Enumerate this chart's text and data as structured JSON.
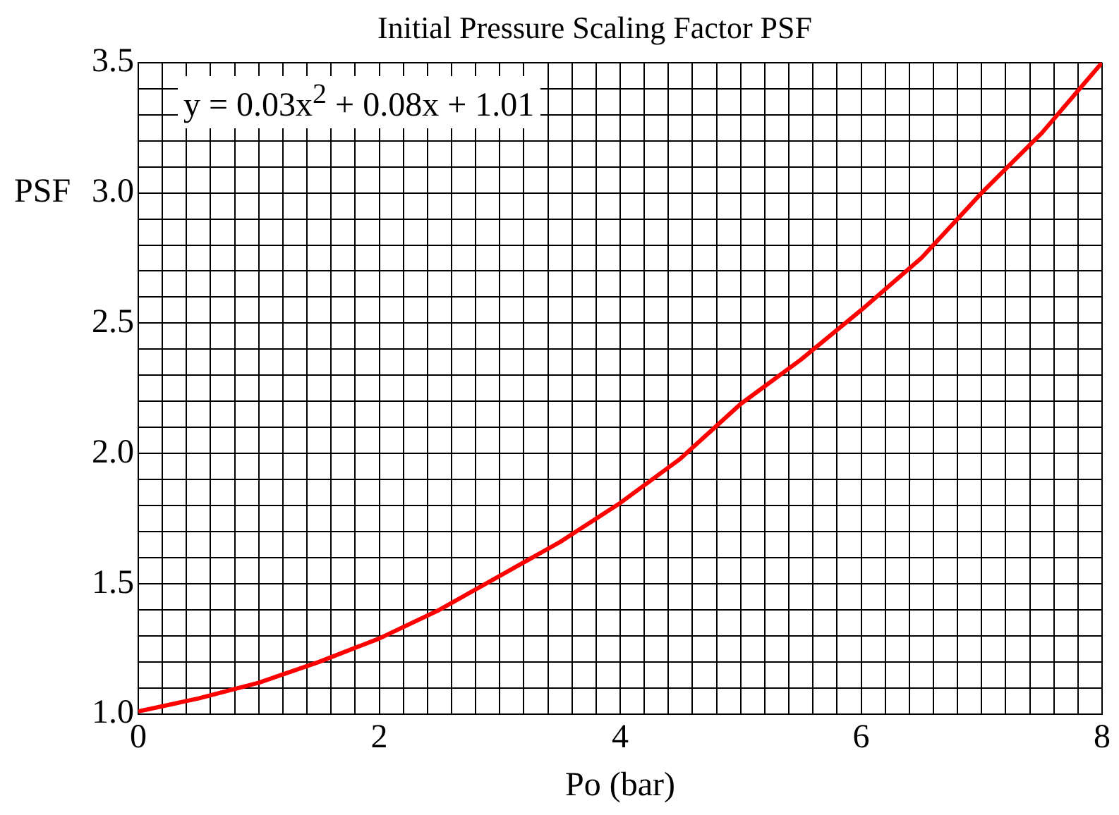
{
  "chart_data": {
    "type": "line",
    "title": "Initial Pressure Scaling Factor PSF",
    "xlabel": "Po (bar)",
    "ylabel": "PSF",
    "annotations": [
      "y = 0.03x$^{2}$ + 0.08x + 1.01"
    ],
    "x": [
      0,
      0.5,
      1,
      1.5,
      2,
      2.5,
      3,
      3.5,
      4,
      4.5,
      5,
      5.5,
      6,
      6.5,
      7,
      7.5,
      8
    ],
    "series": [
      {
        "color": "#ff0000",
        "values": [
          1.01,
          1.06,
          1.12,
          1.2,
          1.29,
          1.4,
          1.53,
          1.66,
          1.81,
          1.98,
          2.19,
          2.36,
          2.55,
          2.75,
          3.0,
          3.23,
          3.5
        ]
      }
    ],
    "xlim": [
      0,
      8
    ],
    "ylim": [
      1,
      3.5
    ],
    "xticks": [
      0,
      {
        "value": 0.2,
        "label": null
      },
      {
        "value": 0.4,
        "label": null
      },
      {
        "value": 0.6,
        "label": null
      },
      {
        "value": 0.8,
        "label": null
      },
      {
        "value": 1,
        "label": null
      },
      {
        "value": 1.2,
        "label": null
      },
      {
        "value": 1.4,
        "label": null
      },
      {
        "value": 1.6,
        "label": null
      },
      {
        "value": 1.8,
        "label": null
      },
      2,
      {
        "value": 2.2,
        "label": null
      },
      {
        "value": 2.4,
        "label": null
      },
      {
        "value": 2.6,
        "label": null
      },
      {
        "value": 2.8,
        "label": null
      },
      {
        "value": 3,
        "label": null
      },
      {
        "value": 3.2,
        "label": null
      },
      {
        "value": 3.4,
        "label": null
      },
      {
        "value": 3.6,
        "label": null
      },
      {
        "value": 3.8,
        "label": null
      },
      4,
      {
        "value": 4.2,
        "label": null
      },
      {
        "value": 4.4,
        "label": null
      },
      {
        "value": 4.6,
        "label": null
      },
      {
        "value": 4.8,
        "label": null
      },
      {
        "value": 5,
        "label": null
      },
      {
        "value": 5.2,
        "label": null
      },
      {
        "value": 5.4,
        "label": null
      },
      {
        "value": 5.6,
        "label": null
      },
      {
        "value": 5.8,
        "label": null
      },
      6,
      {
        "value": 6.2,
        "label": null
      },
      {
        "value": 6.4,
        "label": null
      },
      {
        "value": 6.6,
        "label": null
      },
      {
        "value": 6.8,
        "label": null
      },
      {
        "value": 7,
        "label": null
      },
      {
        "value": 7.2,
        "label": null
      },
      {
        "value": 7.4,
        "label": null
      },
      {
        "value": 7.6,
        "label": null
      },
      {
        "value": 7.8,
        "label": null
      },
      8
    ],
    "yticks": [
      {
        "value": 1,
        "label": "1.0"
      },
      {
        "value": 1.1,
        "label": null
      },
      {
        "value": 1.2,
        "label": null
      },
      {
        "value": 1.3,
        "label": null
      },
      {
        "value": 1.4,
        "label": null
      },
      1.5,
      {
        "value": 1.6,
        "label": null
      },
      {
        "value": 1.7,
        "label": null
      },
      {
        "value": 1.8,
        "label": null
      },
      {
        "value": 1.9,
        "label": null
      },
      {
        "value": 2,
        "label": "2.0"
      },
      {
        "value": 2.1,
        "label": null
      },
      {
        "value": 2.2,
        "label": null
      },
      {
        "value": 2.3,
        "label": null
      },
      {
        "value": 2.4,
        "label": null
      },
      2.5,
      {
        "value": 2.6,
        "label": null
      },
      {
        "value": 2.7,
        "label": null
      },
      {
        "value": 2.8,
        "label": null
      },
      {
        "value": 2.9,
        "label": null
      },
      {
        "value": 3,
        "label": "3.0"
      },
      {
        "value": 3.1,
        "label": null
      },
      {
        "value": 3.2,
        "label": null
      },
      {
        "value": 3.3,
        "label": null
      },
      {
        "value": 3.4,
        "label": null
      },
      3.5
    ],
    "grid": true,
    "legend": false,
    "marker": "none",
    "line_style": "solid"
  }
}
